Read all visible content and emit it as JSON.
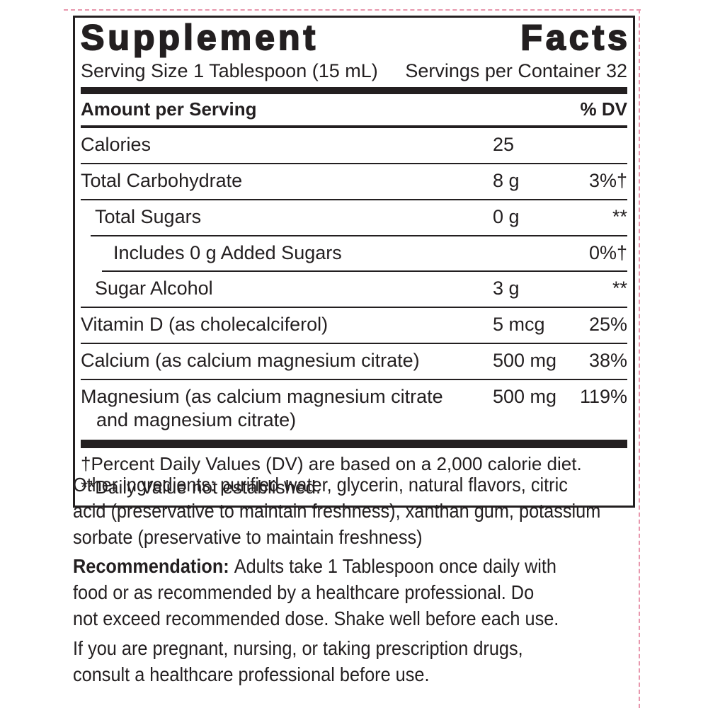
{
  "colors": {
    "text": "#231f20",
    "cutline_pink": "#e897ad"
  },
  "panel": {
    "title_words": [
      "Supplement",
      "Facts"
    ],
    "serving_size": "Serving Size 1 Tablespoon (15 mL)",
    "servings_per_container": "Servings per Container 32",
    "column_headers": {
      "amount": "Amount per Serving",
      "dv": "% DV"
    },
    "rows": [
      {
        "label": "Calories",
        "amount": "25",
        "dv": "",
        "indent": 0,
        "rule_indent": 0
      },
      {
        "label": "Total Carbohydrate",
        "amount": "8 g",
        "dv": "3%†",
        "indent": 0,
        "rule_indent": 0
      },
      {
        "label": "Total Sugars",
        "amount": "0 g",
        "dv": "**",
        "indent": 1,
        "rule_indent": 0
      },
      {
        "label": "Includes 0 g Added Sugars",
        "amount": "",
        "dv": "0%†",
        "indent": 2,
        "rule_indent": 1
      },
      {
        "label": "Sugar Alcohol",
        "amount": "3 g",
        "dv": "**",
        "indent": 1,
        "rule_indent": 2
      },
      {
        "label": "Vitamin D (as cholecalciferol)",
        "amount": "5 mcg",
        "dv": "25%",
        "indent": 0,
        "rule_indent": 0
      },
      {
        "label": "Calcium (as calcium magnesium citrate)",
        "amount": "500 mg",
        "dv": "38%",
        "indent": 0,
        "rule_indent": 0
      },
      {
        "label": "Magnesium (as calcium magnesium citrate",
        "label_line2": "and magnesium citrate)",
        "amount": "500 mg",
        "dv": "119%",
        "indent": 0,
        "rule_indent": 0
      }
    ],
    "footnotes": [
      "†Percent Daily Values (DV) are based on a 2,000 calorie diet.",
      "**Daily Value not established."
    ]
  },
  "sections": {
    "other_ingredients": {
      "lines": [
        "Other ingredients: purified water, glycerin, natural flavors, citric",
        "acid (preservative to maintain freshness), xanthan gum, potassium",
        "sorbate (preservative to maintain freshness)"
      ]
    },
    "recommendation": {
      "lead": "Recommendation:",
      "lines": [
        "Adults take 1 Tablespoon once daily with",
        "food or as recommended by a healthcare professional. Do",
        "not exceed recommended dose. Shake well before each use."
      ]
    },
    "pregnancy_warning": {
      "lines": [
        "If you are pregnant, nursing, or taking prescription drugs,",
        "consult a healthcare professional before use."
      ]
    }
  }
}
